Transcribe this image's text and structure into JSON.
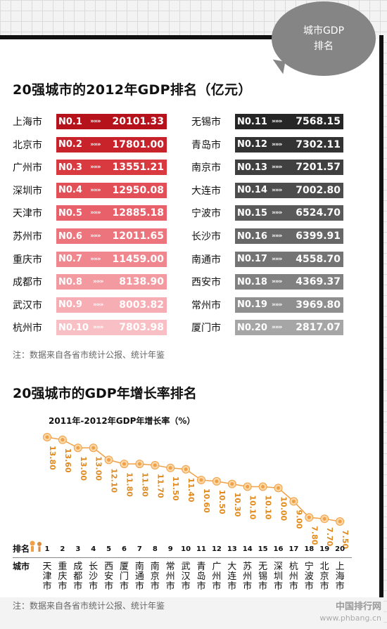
{
  "badge": {
    "line1": "城市GDP",
    "line2": "排名"
  },
  "section1": {
    "title": "20强城市的2012年GDP排名（亿元）"
  },
  "arrows": "»»»",
  "left_ranks": [
    {
      "city": "上海市",
      "rank": "N0.1",
      "value": "20101.33",
      "color": "#b5121b"
    },
    {
      "city": "北京市",
      "rank": "N0.2",
      "value": "17801.00",
      "color": "#c8222b"
    },
    {
      "city": "广州市",
      "rank": "N0.3",
      "value": "13551.21",
      "color": "#d93a40"
    },
    {
      "city": "深圳市",
      "rank": "N0.4",
      "value": "12950.08",
      "color": "#e24f57"
    },
    {
      "city": "天津市",
      "rank": "N0.5",
      "value": "12885.18",
      "color": "#e8616a"
    },
    {
      "city": "苏州市",
      "rank": "N0.6",
      "value": "12011.65",
      "color": "#ec747c"
    },
    {
      "city": "重庆市",
      "rank": "N0.7",
      "value": "11459.00",
      "color": "#f0868e"
    },
    {
      "city": "成都市",
      "rank": "N0.8",
      "value": "8138.90",
      "color": "#f39aa1"
    },
    {
      "city": "武汉市",
      "rank": "N0.9",
      "value": "8003.82",
      "color": "#f6adb3"
    },
    {
      "city": "杭州市",
      "rank": "N0.10",
      "value": "7803.98",
      "color": "#f8c0c5"
    }
  ],
  "right_ranks": [
    {
      "city": "无锡市",
      "rank": "N0.11",
      "value": "7568.15",
      "color": "#262626"
    },
    {
      "city": "青岛市",
      "rank": "N0.12",
      "value": "7302.11",
      "color": "#333333"
    },
    {
      "city": "南京市",
      "rank": "N0.13",
      "value": "7201.57",
      "color": "#404040"
    },
    {
      "city": "大连市",
      "rank": "N0.14",
      "value": "7002.80",
      "color": "#4d4d4d"
    },
    {
      "city": "宁波市",
      "rank": "N0.15",
      "value": "6524.70",
      "color": "#5a5a5a"
    },
    {
      "city": "长沙市",
      "rank": "N0.16",
      "value": "6399.91",
      "color": "#676767"
    },
    {
      "city": "南通市",
      "rank": "N0.17",
      "value": "4558.70",
      "color": "#747474"
    },
    {
      "city": "西安市",
      "rank": "N0.18",
      "value": "4369.37",
      "color": "#818181"
    },
    {
      "city": "常州市",
      "rank": "N0.19",
      "value": "3969.80",
      "color": "#8f8f8f"
    },
    {
      "city": "厦门市",
      "rank": "N0.20",
      "value": "2817.07",
      "color": "#a6a6a6"
    }
  ],
  "note1": "注：数据来自各省市统计公报、统计年鉴",
  "section2": {
    "title": "20强城市的GDP年增长率排名"
  },
  "axis_labels": {
    "rank": "排名",
    "city": "城市"
  },
  "note2": "注：数据来自各省市统计公报、统计年鉴",
  "watermark": {
    "logo": "中国排行网",
    "url": "www.phbang.cn"
  },
  "chart_data": {
    "type": "line",
    "title": "2011年-2012年GDP年增长率（%）",
    "marker_color": "#f0a046",
    "label_color": "#e08a1e",
    "ranks": [
      "1",
      "2",
      "3",
      "4",
      "5",
      "6",
      "7",
      "8",
      "9",
      "10",
      "11",
      "12",
      "13",
      "14",
      "15",
      "16",
      "17",
      "18",
      "19",
      "20"
    ],
    "categories": [
      "天津市",
      "重庆市",
      "成都市",
      "长沙市",
      "西安市",
      "厦门市",
      "南通市",
      "南京市",
      "常州市",
      "武汉市",
      "青岛市",
      "广州市",
      "大连市",
      "苏州市",
      "无锡市",
      "深圳市",
      "杭州市",
      "宁波市",
      "北京市",
      "上海市"
    ],
    "labels": [
      "13.80",
      "13.60",
      "13.00",
      "13.00",
      "12.10",
      "11.80",
      "11.80",
      "11.70",
      "11.50",
      "11.40",
      "10.60",
      "10.50",
      "10.30",
      "10.10",
      "10.10",
      "10.00",
      "9.00",
      "7.80",
      "7.70",
      "7.50"
    ],
    "values": [
      13.8,
      13.6,
      13.0,
      13.0,
      12.1,
      11.8,
      11.8,
      11.7,
      11.5,
      11.4,
      10.6,
      10.5,
      10.3,
      10.1,
      10.1,
      10.0,
      9.0,
      7.8,
      7.7,
      7.5
    ]
  }
}
